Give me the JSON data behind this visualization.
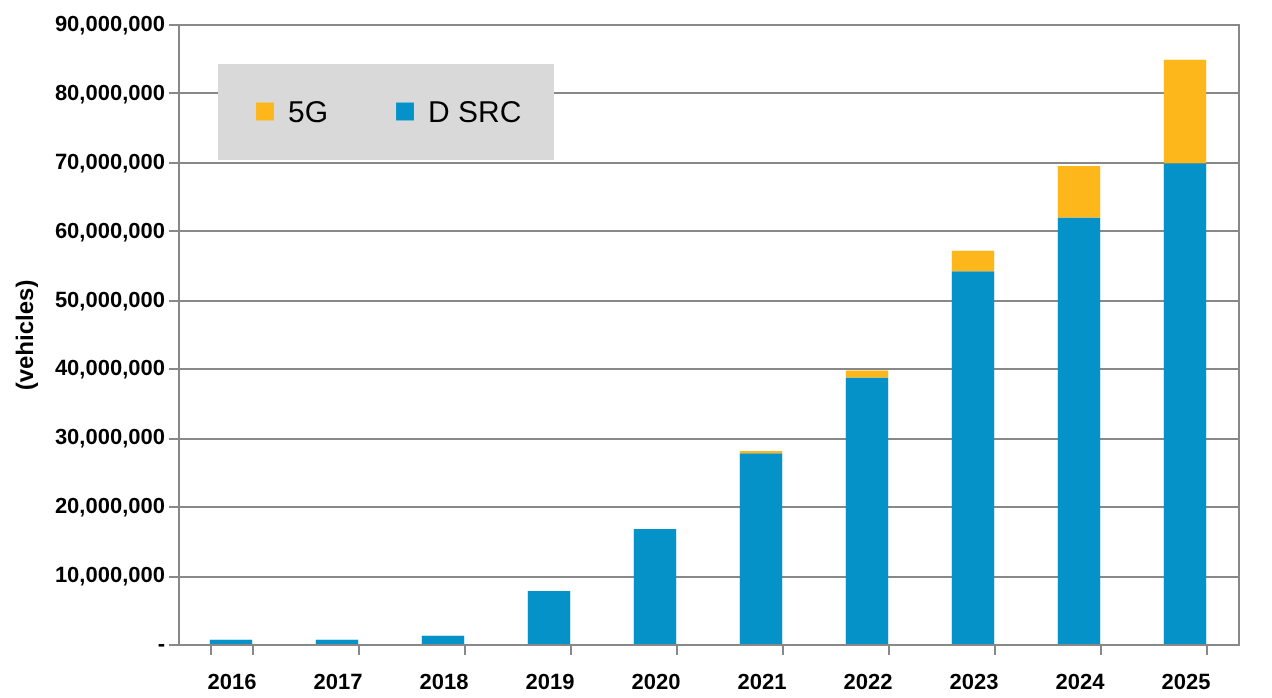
{
  "chart_data": {
    "type": "bar",
    "stacked": true,
    "ylabel": "(vehicles)",
    "categories": [
      "2016",
      "2017",
      "2018",
      "2019",
      "2020",
      "2021",
      "2022",
      "2023",
      "2024",
      "2025"
    ],
    "series": [
      {
        "name": "D SRC",
        "color": "#0492c8",
        "values": [
          600000,
          600000,
          1200000,
          7700000,
          16700000,
          27700000,
          38700000,
          54100000,
          61900000,
          69800000
        ]
      },
      {
        "name": "5G",
        "color": "#fdb71a",
        "values": [
          0,
          0,
          0,
          0,
          0,
          300000,
          1000000,
          3000000,
          7500000,
          15000000
        ]
      }
    ],
    "ylim": [
      0,
      90000000
    ],
    "yticks": [
      {
        "value": 0,
        "label": "-"
      },
      {
        "value": 10000000,
        "label": "10,000,000"
      },
      {
        "value": 20000000,
        "label": "20,000,000"
      },
      {
        "value": 30000000,
        "label": "30,000,000"
      },
      {
        "value": 40000000,
        "label": "40,000,000"
      },
      {
        "value": 50000000,
        "label": "50,000,000"
      },
      {
        "value": 60000000,
        "label": "60,000,000"
      },
      {
        "value": 70000000,
        "label": "70,000,000"
      },
      {
        "value": 80000000,
        "label": "80,000,000"
      },
      {
        "value": 90000000,
        "label": "90,000,000"
      }
    ],
    "grid": "y",
    "legend": "top left"
  }
}
